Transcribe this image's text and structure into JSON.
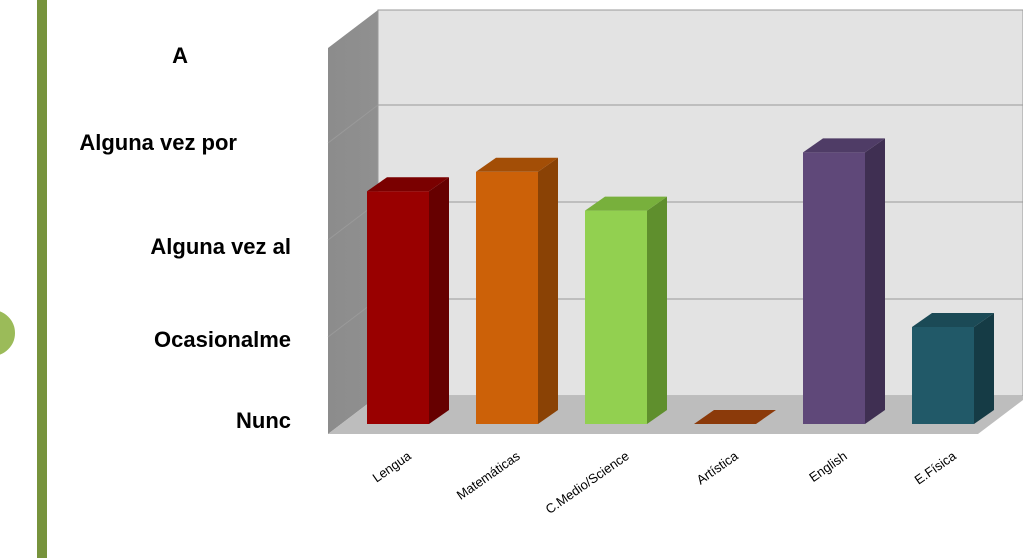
{
  "chart_data": {
    "type": "bar",
    "categories": [
      "Lengua",
      "Matemáticas",
      "C.Medio/Science",
      "Artística",
      "English",
      "E.Física"
    ],
    "values": [
      2.4,
      2.6,
      2.2,
      0,
      2.8,
      1.0
    ],
    "y_tick_labels": [
      "Nunc",
      "Ocasionalme",
      "Alguna vez al",
      "Alguna vez por",
      "A"
    ],
    "ylim": [
      0,
      4
    ],
    "grid": true,
    "legend": "none",
    "colors": [
      {
        "front": "#990000",
        "side": "#660000",
        "top": "#7a0000"
      },
      {
        "front": "#cc6108",
        "side": "#8a4205",
        "top": "#a34e06"
      },
      {
        "front": "#92d050",
        "side": "#5f8f2d",
        "top": "#78b03c"
      },
      {
        "front": "#8b3a0a",
        "side": "#6a2b06",
        "top": "#8b3a0a"
      },
      {
        "front": "#5f4879",
        "side": "#3f2f52",
        "top": "#4f3c66"
      },
      {
        "front": "#215968",
        "side": "#153b45",
        "top": "#1b4a56"
      }
    ]
  },
  "decor": {
    "stripe_color": "#77933c",
    "circle_fill": "#9bbb59"
  }
}
